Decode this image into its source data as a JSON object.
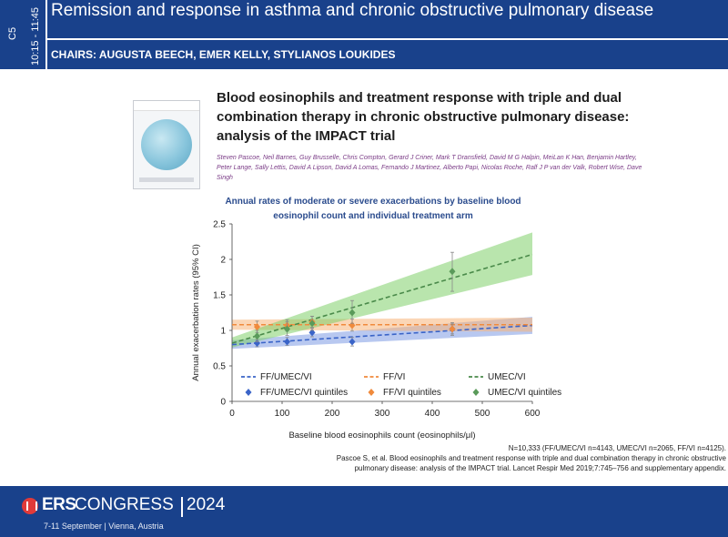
{
  "header": {
    "session_code": "C5",
    "session_time": "10:15 - 11:45",
    "title": "Remission and response in asthma and chronic obstructive pulmonary disease",
    "chairs": "CHAIRS: AUGUSTA BEECH, EMER KELLY, STYLIANOS LOUKIDES"
  },
  "slide": {
    "paper_title": "Blood eosinophils and treatment response with triple and dual combination therapy in chronic obstructive pulmonary disease: analysis of the IMPACT trial",
    "authors": "Steven Pascoe, Neil Barnes, Guy Brusselle, Chris Compton, Gerard J Criner, Mark T Dransfield, David M G Halpin, MeiLan K Han, Benjamin Hartley, Peter Lange, Sally Lettis, David A Lipson, David A Lomas, Fernando J Martinez, Alberto Papi, Nicolas Roche, Ralf J P van der Valk, Robert Wise, Dave Singh",
    "journal_cover": "THE LANCET Respiratory Medicine",
    "chart_title_line1": "Annual rates of moderate or severe exacerbations by baseline blood",
    "chart_title_line2": "eosinophil count and individual treatment arm",
    "source_line1": "N=10,333 (FF/UMEC/VI n=4143, UMEC/VI n=2065, FF/VI n=4125).",
    "source_line2": "Pascoe S, et al. Blood eosinophils and treatment response with triple and dual combination therapy in chronic obstructive",
    "source_line3": "pulmonary disease: analysis of the IMPACT trial. Lancet Respir Med 2019;7:745–756 and supplementary appendix."
  },
  "footer": {
    "ers": "ERS",
    "congress": "CONGRESS",
    "year": "2024",
    "dates": "7-11 September | Vienna, Austria"
  },
  "colors": {
    "header_bg": "#19418b",
    "blue": "#3a64c8",
    "orange": "#f08a3c",
    "green": "#4fa64f",
    "chart_title": "#2a4b8d"
  },
  "chart_data": {
    "type": "line",
    "xlabel": "Baseline blood eosinophils count (eosinophils/μl)",
    "ylabel": "Annual exacerbation rates (95% CI)",
    "xlim": [
      0,
      600
    ],
    "ylim": [
      0,
      2.5
    ],
    "xticks": [
      "0",
      "100",
      "200",
      "300",
      "400",
      "500",
      "600"
    ],
    "yticks": [
      "0",
      "0.5",
      "1",
      "1.5",
      "2",
      "2.5"
    ],
    "grid": false,
    "legend_position": "bottom",
    "series": [
      {
        "name": "FF/UMEC/VI",
        "color": "#3a64c8",
        "band": "#7d9ae3",
        "line": [
          [
            0,
            0.8
          ],
          [
            600,
            1.07
          ]
        ],
        "band_lower": [
          [
            0,
            0.74
          ],
          [
            600,
            0.95
          ]
        ],
        "band_upper": [
          [
            0,
            0.86
          ],
          [
            600,
            1.19
          ]
        ]
      },
      {
        "name": "FF/VI",
        "color": "#f08a3c",
        "band": "#f7b47a",
        "line": [
          [
            0,
            1.08
          ],
          [
            600,
            1.08
          ]
        ],
        "band_lower": [
          [
            0,
            1.01
          ],
          [
            600,
            0.98
          ]
        ],
        "band_upper": [
          [
            0,
            1.15
          ],
          [
            600,
            1.18
          ]
        ]
      },
      {
        "name": "UMEC/VI",
        "color": "#4a8a4a",
        "band": "#7fcf6a",
        "line": [
          [
            0,
            0.82
          ],
          [
            600,
            2.07
          ]
        ],
        "band_lower": [
          [
            0,
            0.76
          ],
          [
            600,
            1.78
          ]
        ],
        "band_upper": [
          [
            0,
            0.9
          ],
          [
            600,
            2.38
          ]
        ]
      }
    ],
    "quintiles": [
      {
        "name": "FF/UMEC/VI quintiles",
        "color": "#3a64c8",
        "points": [
          {
            "x": 50,
            "y": 0.82,
            "lo": 0.77,
            "hi": 0.87
          },
          {
            "x": 110,
            "y": 0.84,
            "lo": 0.79,
            "hi": 0.9
          },
          {
            "x": 160,
            "y": 0.97,
            "lo": 0.91,
            "hi": 1.03
          },
          {
            "x": 240,
            "y": 0.84,
            "lo": 0.78,
            "hi": 0.9
          },
          {
            "x": 440,
            "y": 1.02,
            "lo": 0.95,
            "hi": 1.09
          }
        ]
      },
      {
        "name": "FF/VI quintiles",
        "color": "#f08a3c",
        "points": [
          {
            "x": 50,
            "y": 1.05,
            "lo": 0.97,
            "hi": 1.13
          },
          {
            "x": 110,
            "y": 1.07,
            "lo": 0.99,
            "hi": 1.15
          },
          {
            "x": 160,
            "y": 1.12,
            "lo": 1.04,
            "hi": 1.2
          },
          {
            "x": 240,
            "y": 1.07,
            "lo": 0.99,
            "hi": 1.16
          },
          {
            "x": 440,
            "y": 1.02,
            "lo": 0.93,
            "hi": 1.11
          }
        ]
      },
      {
        "name": "UMEC/VI quintiles",
        "color": "#5a9a5a",
        "points": [
          {
            "x": 50,
            "y": 0.92,
            "lo": 0.84,
            "hi": 1.0
          },
          {
            "x": 110,
            "y": 1.02,
            "lo": 0.93,
            "hi": 1.12
          },
          {
            "x": 160,
            "y": 1.1,
            "lo": 1.0,
            "hi": 1.2
          },
          {
            "x": 240,
            "y": 1.25,
            "lo": 1.1,
            "hi": 1.42
          },
          {
            "x": 440,
            "y": 1.83,
            "lo": 1.55,
            "hi": 2.1
          }
        ]
      }
    ]
  }
}
